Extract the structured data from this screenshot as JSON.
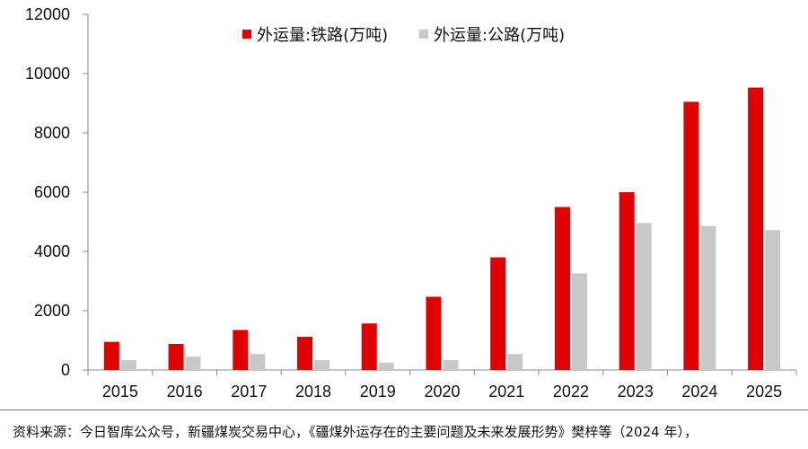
{
  "chart_data": {
    "type": "bar",
    "categories": [
      "2015",
      "2016",
      "2017",
      "2018",
      "2019",
      "2020",
      "2021",
      "2022",
      "2023",
      "2024",
      "2025"
    ],
    "series": [
      {
        "name": "外运量:铁路(万吨)",
        "color": "#e00000",
        "values": [
          950,
          880,
          1350,
          1120,
          1570,
          2470,
          3800,
          5500,
          6000,
          9050,
          9530
        ]
      },
      {
        "name": "外运量:公路(万吨)",
        "color": "#c8c8c8",
        "values": [
          330,
          450,
          540,
          330,
          240,
          330,
          540,
          3260,
          4960,
          4860,
          4720
        ]
      }
    ],
    "ylim": [
      0,
      12000
    ],
    "yticks": [
      0,
      2000,
      4000,
      6000,
      8000,
      10000,
      12000
    ],
    "legend_position": "top",
    "grid": false
  },
  "source_text": "资料来源：今日智库公众号，新疆煤炭交易中心，《疆煤外运存在的主要问题及未来发展形势》樊梓等（2024 年），"
}
